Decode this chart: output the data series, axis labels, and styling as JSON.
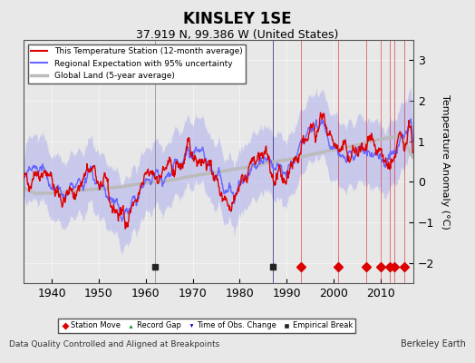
{
  "title": "KINSLEY 1SE",
  "subtitle": "37.919 N, 99.386 W (United States)",
  "xlabel_note": "Data Quality Controlled and Aligned at Breakpoints",
  "credit": "Berkeley Earth",
  "ylabel": "Temperature Anomaly (°C)",
  "xlim": [
    1934,
    2017
  ],
  "ylim": [
    -2.5,
    3.5
  ],
  "yticks": [
    -2,
    -1,
    0,
    1,
    2,
    3
  ],
  "xticks": [
    1940,
    1950,
    1960,
    1970,
    1980,
    1990,
    2000,
    2010
  ],
  "bg_color": "#e8e8e8",
  "plot_bg_color": "#e8e8e8",
  "station_color": "#dd0000",
  "regional_color": "#6666ff",
  "global_color": "#bbbbbb",
  "uncertainty_color": "#aaaaee",
  "legend_items": [
    {
      "label": "This Temperature Station (12-month average)",
      "color": "#dd0000",
      "lw": 1.5
    },
    {
      "label": "Regional Expectation with 95% uncertainty",
      "color": "#6666ff",
      "lw": 1.5
    },
    {
      "label": "Global Land (5-year average)",
      "color": "#bbbbbb",
      "lw": 2.5
    }
  ],
  "marker_events": {
    "station_move": {
      "years": [
        1993,
        2001,
        2007,
        2010,
        2012,
        2013,
        2015
      ],
      "color": "#dd0000",
      "marker": "D"
    },
    "record_gap": {
      "years": [],
      "color": "#008800",
      "marker": "^"
    },
    "time_obs_change": {
      "years": [
        1987
      ],
      "color": "#0000cc",
      "marker": "v"
    },
    "empirical_break": {
      "years": [
        1962,
        1987
      ],
      "color": "#222222",
      "marker": "s"
    }
  },
  "seed": 42
}
